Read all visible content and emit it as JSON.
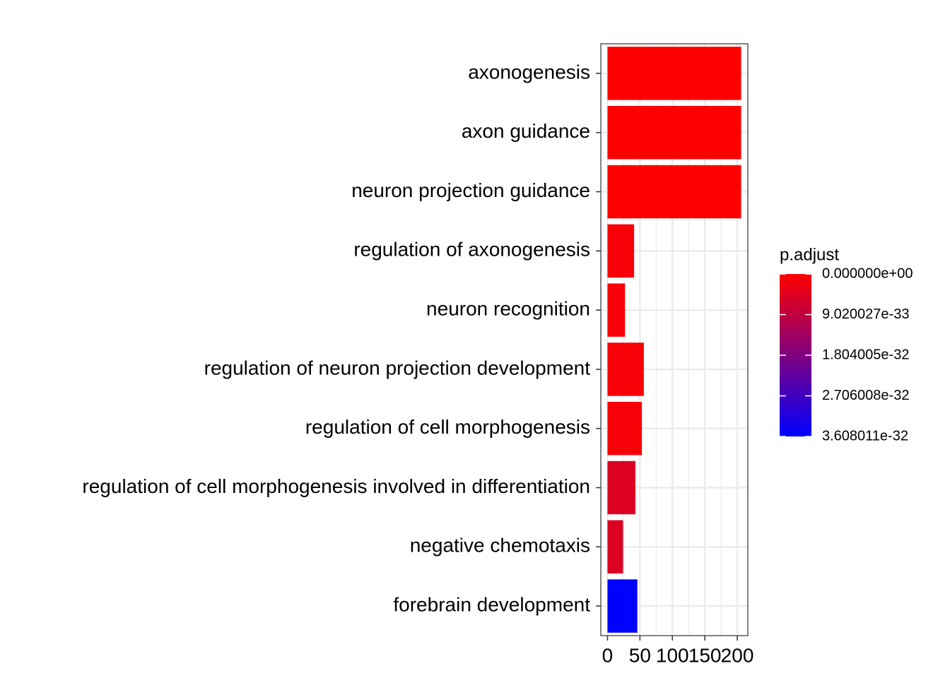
{
  "chart_data": {
    "type": "bar",
    "orientation": "horizontal",
    "categories": [
      "axonogenesis",
      "axon guidance",
      "neuron projection guidance",
      "regulation of axonogenesis",
      "neuron recognition",
      "regulation of neuron projection development",
      "regulation of cell morphogenesis",
      "regulation of cell morphogenesis involved in differentiation",
      "negative chemotaxis",
      "forebrain development"
    ],
    "values": [
      206,
      206,
      206,
      41,
      27,
      56,
      53,
      43,
      24,
      46
    ],
    "color_values": [
      0,
      0,
      0,
      1e-33,
      1e-33,
      1e-33,
      1e-33,
      5e-33,
      5e-33,
      3.608011e-32
    ],
    "xlim": [
      -10.3,
      216.3
    ],
    "xticks": [
      0,
      50,
      100,
      150,
      200
    ],
    "grid": true,
    "color_scale": {
      "title": "p.adjust",
      "low_color": "#ff0000",
      "high_color": "#0000ff",
      "lim": [
        0,
        3.608011e-32
      ],
      "ticks": [
        {
          "value": 0,
          "label": "0.000000e+00"
        },
        {
          "value": 9.020027e-33,
          "label": "9.020027e-33"
        },
        {
          "value": 1.804005e-32,
          "label": "1.804005e-32"
        },
        {
          "value": 2.706008e-32,
          "label": "2.706008e-32"
        },
        {
          "value": 3.608011e-32,
          "label": "3.608011e-32"
        }
      ]
    }
  }
}
